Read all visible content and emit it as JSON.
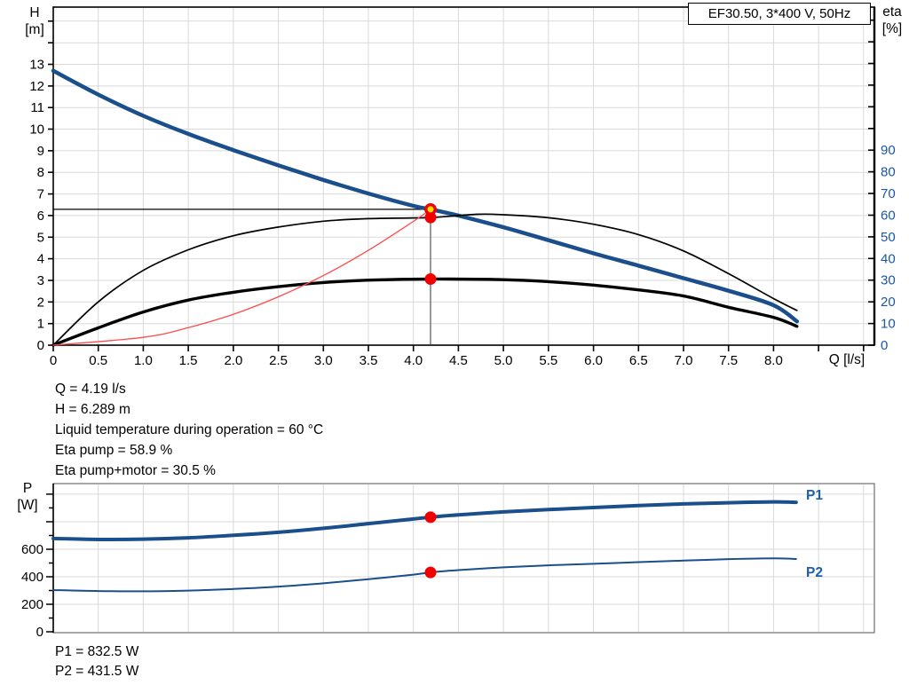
{
  "title_box": "EF30.50, 3*400 V, 50Hz",
  "labels": {
    "h": "H",
    "h_unit": "[m]",
    "eta": "eta",
    "eta_unit": "[%]",
    "q_axis": "Q [l/s]",
    "p": "P",
    "p_unit": "[W]",
    "p1": "P1",
    "p2": "P2"
  },
  "annotations_top": {
    "line1": "Q = 4.19 l/s",
    "line2": "H = 6.289 m",
    "line3": "Liquid temperature during operation = 60 °C",
    "line4": "Eta pump = 58.9 %",
    "line5": "Eta pump+motor = 30.5 %"
  },
  "annotations_bottom": {
    "line1": "P1 = 832.5 W",
    "line2": "P2 = 431.5 W"
  },
  "colors": {
    "curve_blue": "#1a4f8b",
    "eta_tick_label": "#1a55a8",
    "p_label_blue": "#1f5fa8",
    "grid": "#d9d9d9",
    "frame_top": "#000000",
    "frame_bottom": "#6e6e6e",
    "marker_red": "#f20000",
    "marker_yellow": "#ffe100",
    "system_curve_red": "#ff4a4a",
    "duty_vline": "#555555"
  },
  "chart_data": [
    {
      "type": "line",
      "title": "EF30.50, 3*400 V, 50Hz",
      "xlabel": "Q [l/s]",
      "ylabel_left": "H [m]",
      "ylabel_right": "eta [%]",
      "x_range": [
        0,
        9.12
      ],
      "x_tick_step": 0.5,
      "x_label_max": 8.0,
      "y_left_range": [
        0,
        15.65
      ],
      "y_left_tick_step": 1,
      "y_left_label_max": 13,
      "y_right_range": [
        0,
        156
      ],
      "y_right_tick_step": 10,
      "y_right_label_max": 90,
      "grid": true,
      "series": [
        {
          "name": "pump-qh-curve",
          "axis": "left",
          "width": 4.5,
          "points": [
            [
              0,
              12.7
            ],
            [
              0.5,
              11.6
            ],
            [
              1,
              10.62
            ],
            [
              1.5,
              9.78
            ],
            [
              2,
              9.03
            ],
            [
              2.5,
              8.32
            ],
            [
              3,
              7.65
            ],
            [
              3.5,
              7.02
            ],
            [
              4,
              6.45
            ],
            [
              4.19,
              6.289
            ],
            [
              4.5,
              6.0
            ],
            [
              5,
              5.46
            ],
            [
              5.5,
              4.86
            ],
            [
              6,
              4.25
            ],
            [
              6.5,
              3.68
            ],
            [
              7,
              3.1
            ],
            [
              7.5,
              2.52
            ],
            [
              8,
              1.85
            ],
            [
              8.26,
              1.1
            ]
          ]
        },
        {
          "name": "eta-pump-curve",
          "axis": "right",
          "width": 1.7,
          "points": [
            [
              0,
              0
            ],
            [
              0.5,
              20
            ],
            [
              1,
              34.5
            ],
            [
              1.5,
              44
            ],
            [
              2,
              50.5
            ],
            [
              2.5,
              54.5
            ],
            [
              3,
              57.2
            ],
            [
              3.5,
              58.4
            ],
            [
              4.19,
              58.9
            ],
            [
              4.7,
              60.4
            ],
            [
              5,
              60.2
            ],
            [
              5.5,
              58.8
            ],
            [
              6,
              55.8
            ],
            [
              6.5,
              51
            ],
            [
              7,
              43.5
            ],
            [
              7.5,
              33
            ],
            [
              8,
              21.5
            ],
            [
              8.26,
              16
            ]
          ]
        },
        {
          "name": "eta-pump-motor-curve",
          "axis": "right",
          "width": 3.4,
          "points": [
            [
              0,
              0
            ],
            [
              0.5,
              8
            ],
            [
              1,
              15.3
            ],
            [
              1.5,
              20.8
            ],
            [
              2,
              24.4
            ],
            [
              2.5,
              27
            ],
            [
              3,
              28.9
            ],
            [
              3.5,
              30
            ],
            [
              4.19,
              30.5
            ],
            [
              5,
              30.2
            ],
            [
              5.5,
              29.3
            ],
            [
              6,
              27.7
            ],
            [
              6.5,
              25.5
            ],
            [
              7,
              22.7
            ],
            [
              7.5,
              17.5
            ],
            [
              8,
              12.8
            ],
            [
              8.26,
              8.7
            ]
          ]
        },
        {
          "name": "system-curve",
          "axis": "left",
          "width": 1.3,
          "points": [
            [
              0,
              0
            ],
            [
              1,
              0.36
            ],
            [
              1.5,
              0.81
            ],
            [
              2,
              1.43
            ],
            [
              2.5,
              2.24
            ],
            [
              3,
              3.22
            ],
            [
              3.5,
              4.39
            ],
            [
              4,
              5.73
            ],
            [
              4.19,
              6.289
            ]
          ]
        }
      ],
      "duty_point": {
        "q": 4.19,
        "h": 6.289,
        "eta_pump": 58.9,
        "eta_pump_motor": 30.5
      }
    },
    {
      "type": "line",
      "ylabel_left": "P [W]",
      "x_range": [
        0,
        9.12
      ],
      "x_tick_step": 0.5,
      "y_range": [
        0,
        1077
      ],
      "y_tick_step": 100,
      "y_label_step": 200,
      "y_label_max": 600,
      "grid": true,
      "series": [
        {
          "name": "P1",
          "width": 4.0,
          "points": [
            [
              0,
              678
            ],
            [
              0.5,
              671
            ],
            [
              1,
              673
            ],
            [
              1.5,
              683
            ],
            [
              2,
              701
            ],
            [
              2.5,
              723
            ],
            [
              3,
              752
            ],
            [
              3.5,
              786
            ],
            [
              4,
              820
            ],
            [
              4.19,
              832.5
            ],
            [
              4.5,
              850
            ],
            [
              5,
              871
            ],
            [
              5.5,
              888
            ],
            [
              6,
              903
            ],
            [
              6.5,
              917
            ],
            [
              7,
              929
            ],
            [
              7.5,
              938
            ],
            [
              8,
              944
            ],
            [
              8.25,
              941
            ]
          ]
        },
        {
          "name": "P2",
          "width": 2.0,
          "points": [
            [
              0,
              303
            ],
            [
              0.5,
              296
            ],
            [
              1,
              294
            ],
            [
              1.5,
              299
            ],
            [
              2,
              311
            ],
            [
              2.5,
              328
            ],
            [
              3,
              352
            ],
            [
              3.5,
              382
            ],
            [
              4,
              415
            ],
            [
              4.19,
              431.5
            ],
            [
              4.5,
              448
            ],
            [
              5,
              468
            ],
            [
              5.5,
              483
            ],
            [
              6,
              494
            ],
            [
              6.5,
              506
            ],
            [
              7,
              517
            ],
            [
              7.5,
              528
            ],
            [
              8,
              534
            ],
            [
              8.25,
              529
            ]
          ]
        }
      ],
      "duty_point": {
        "q": 4.19,
        "p1": 832.5,
        "p2": 431.5
      }
    }
  ]
}
